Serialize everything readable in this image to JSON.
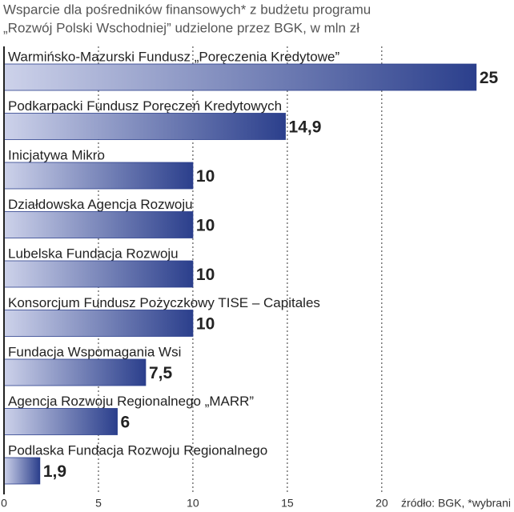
{
  "chart_data": {
    "type": "bar",
    "orientation": "horizontal",
    "title": [
      "Wsparcie dla pośredników finansowych* z budżetu programu",
      "„Rozwój Polski Wschodniej” udzielone przez BGK, w mln zł"
    ],
    "categories": [
      "Warmińsko-Mazurski Fundusz „Poręczenia Kredytowe”",
      "Podkarpacki Fundusz Poręczeń Kredytowych",
      "Inicjatywa Mikro",
      "Działdowska Agencja Rozwoju",
      "Lubelska Fundacja Rozwoju",
      "Konsorcjum Fundusz Pożyczkowy TISE – Capitales",
      "Fundacja Wspomagania Wsi",
      "Agencja Rozwoju Regionalnego „MARR”",
      "Podlaska Fundacja Rozwoju Regionalnego"
    ],
    "values": [
      25,
      14.9,
      10,
      10,
      10,
      10,
      7.5,
      6,
      1.9
    ],
    "value_labels": [
      "25",
      "14,9",
      "10",
      "10",
      "10",
      "10",
      "7,5",
      "6",
      "1,9"
    ],
    "color": "#2b3f8c",
    "xlim": [
      0,
      27
    ],
    "xticks": [
      0,
      5,
      10,
      15,
      20
    ],
    "grid": true,
    "source": "źródło: BGK, *wybrani"
  }
}
